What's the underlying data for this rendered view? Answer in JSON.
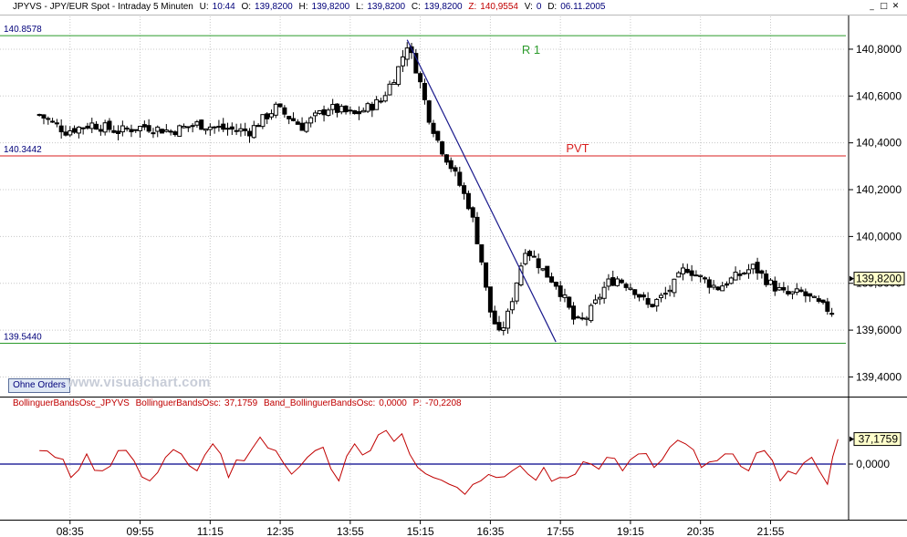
{
  "header": {
    "symbol": "JPYVS - JPY/EUR Spot - Intraday 5 Minuten",
    "u_label": "U:",
    "u_value": "10:44",
    "o_label": "O:",
    "o_value": "139,8200",
    "h_label": "H:",
    "h_value": "139,8200",
    "l_label": "L:",
    "l_value": "139,8200",
    "c_label": "C:",
    "c_value": "139,8200",
    "z_label": "Z:",
    "z_value": "140,9554",
    "vol_label": "V:",
    "vol_value": "0",
    "d_label": "D:",
    "d_value": "06.11.2005",
    "window_buttons": [
      "minimize-icon",
      "restore-icon",
      "close-icon"
    ]
  },
  "toolbar": {
    "ohne_orders": "Ohne Orders"
  },
  "watermark": "www.visualchart.com",
  "oscillator": {
    "name": "BollinguerBandsOsc_JPYVS",
    "value_label": "BollinguerBandsOsc:",
    "value": "37,1759",
    "band_label": "Band_BollinguerBandsOsc:",
    "band_value": "0,0000",
    "p_label": "P:",
    "p_value": "-70,2208"
  },
  "colors": {
    "candle": "#000000",
    "support_lines": "#2a9a2a",
    "pivot_line": "#d81f1f",
    "trend_line": "#1a1a8c",
    "oscillator": "#c00000",
    "zero_line": "#00008a",
    "grid": "#c8c8c8"
  },
  "chart_data": [
    {
      "type": "candlestick",
      "title": "JPYVS - JPY/EUR Spot - Intraday 5 Minuten",
      "x_ticks": [
        "08:35",
        "09:55",
        "11:15",
        "12:35",
        "13:55",
        "15:15",
        "16:35",
        "17:55",
        "19:15",
        "20:35",
        "21:55"
      ],
      "y_ticks": [
        "140,8000",
        "140,6000",
        "140,4000",
        "140,2000",
        "140,0000",
        "139,8000",
        "139,6000",
        "139,4000"
      ],
      "y_tick_values": [
        140.8,
        140.6,
        140.4,
        140.2,
        140.0,
        139.8,
        139.6,
        139.4
      ],
      "ylim": [
        139.32,
        140.94
      ],
      "grid": true,
      "last_price_label": "139,8200",
      "last_price": 139.82,
      "levels": [
        {
          "name": "R 1",
          "value": 140.8578,
          "label": "140.8578",
          "color": "#2a9a2a"
        },
        {
          "name": "PVT",
          "value": 140.3442,
          "label": "140.3442",
          "color": "#d81f1f"
        },
        {
          "name": "",
          "value": 139.544,
          "label": "139.5440",
          "color": "#2a9a2a"
        }
      ],
      "trendline": [
        [
          15.0,
          140.84
        ],
        [
          17.83,
          139.55
        ]
      ],
      "close_path": [
        [
          8.0,
          140.52
        ],
        [
          8.5,
          140.45
        ],
        [
          9.0,
          140.48
        ],
        [
          9.5,
          140.45
        ],
        [
          10.0,
          140.47
        ],
        [
          10.5,
          140.45
        ],
        [
          11.0,
          140.48
        ],
        [
          11.5,
          140.46
        ],
        [
          12.0,
          140.45
        ],
        [
          12.5,
          140.55
        ],
        [
          13.0,
          140.47
        ],
        [
          13.5,
          140.55
        ],
        [
          14.0,
          140.52
        ],
        [
          14.5,
          140.58
        ],
        [
          14.8,
          140.7
        ],
        [
          15.0,
          140.82
        ],
        [
          15.2,
          140.7
        ],
        [
          15.4,
          140.52
        ],
        [
          15.6,
          140.4
        ],
        [
          15.9,
          140.27
        ],
        [
          16.2,
          140.12
        ],
        [
          16.4,
          139.92
        ],
        [
          16.55,
          139.7
        ],
        [
          16.75,
          139.58
        ],
        [
          16.9,
          139.65
        ],
        [
          17.05,
          139.78
        ],
        [
          17.25,
          139.95
        ],
        [
          17.45,
          139.9
        ],
        [
          17.6,
          139.85
        ],
        [
          17.83,
          139.8
        ],
        [
          18.0,
          139.73
        ],
        [
          18.2,
          139.63
        ],
        [
          18.4,
          139.65
        ],
        [
          18.6,
          139.72
        ],
        [
          18.8,
          139.8
        ],
        [
          19.0,
          139.82
        ],
        [
          19.3,
          139.78
        ],
        [
          19.6,
          139.7
        ],
        [
          19.9,
          139.75
        ],
        [
          20.1,
          139.8
        ],
        [
          20.3,
          139.87
        ],
        [
          20.6,
          139.82
        ],
        [
          20.9,
          139.78
        ],
        [
          21.2,
          139.82
        ],
        [
          21.6,
          139.87
        ],
        [
          21.9,
          139.8
        ],
        [
          22.2,
          139.75
        ],
        [
          22.5,
          139.76
        ],
        [
          22.9,
          139.7
        ],
        [
          23.1,
          139.68
        ]
      ]
    },
    {
      "type": "line",
      "title": "BollinguerBandsOsc_JPYVS",
      "y_ticks": [
        "0,0000"
      ],
      "last_value_label": "37,1759",
      "last_value": 37.18,
      "zero_line": 0.0,
      "ylim": [
        -80,
        80
      ],
      "series": [
        {
          "name": "BollinguerBandsOsc",
          "x": [
            8.0,
            8.3,
            8.6,
            8.9,
            9.2,
            9.5,
            9.8,
            10.1,
            10.4,
            10.7,
            11.0,
            11.3,
            11.6,
            11.9,
            12.2,
            12.5,
            12.8,
            13.1,
            13.4,
            13.7,
            14.0,
            14.3,
            14.6,
            14.9,
            15.2,
            15.5,
            15.8,
            16.1,
            16.4,
            16.7,
            17.0,
            17.3,
            17.6,
            17.9,
            18.2,
            18.5,
            18.8,
            19.1,
            19.4,
            19.7,
            20.0,
            20.3,
            20.6,
            20.9,
            21.2,
            21.5,
            21.8,
            22.1,
            22.4,
            22.7,
            23.0,
            23.2
          ],
          "values": [
            20,
            10,
            -20,
            15,
            -10,
            20,
            5,
            -25,
            10,
            15,
            -10,
            30,
            -20,
            5,
            40,
            20,
            -15,
            10,
            25,
            -25,
            30,
            20,
            50,
            45,
            -5,
            -20,
            -30,
            -45,
            -25,
            -20,
            -10,
            -15,
            -5,
            -20,
            -15,
            0,
            10,
            -10,
            15,
            -5,
            25,
            30,
            -5,
            5,
            15,
            -10,
            20,
            -25,
            -15,
            10,
            -30,
            37
          ]
        }
      ]
    }
  ]
}
